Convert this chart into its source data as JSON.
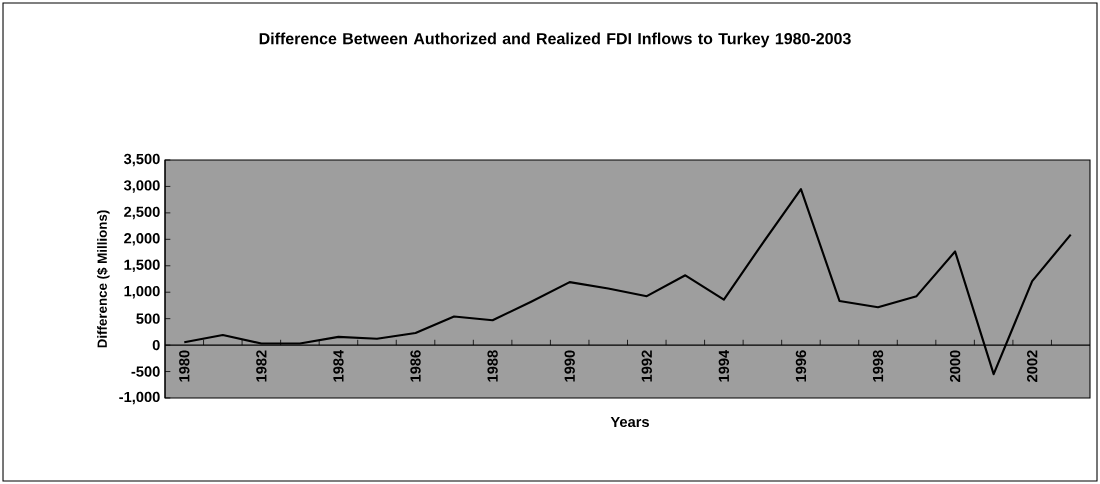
{
  "chart_data": {
    "type": "line",
    "title": "Difference Between Authorized and Realized FDI Inflows to Turkey 1980-2003",
    "xlabel": "Years",
    "ylabel": "Difference ($ Millions)",
    "categories": [
      "1980",
      null,
      "1982",
      null,
      "1984",
      null,
      "1986",
      null,
      "1988",
      null,
      "1990",
      null,
      "1992",
      null,
      "1994",
      null,
      "1996",
      null,
      "1998",
      null,
      "2000",
      null,
      "2002",
      null
    ],
    "series": [
      {
        "color": "#000000",
        "values": [
          55,
          190,
          30,
          30,
          155,
          120,
          230,
          540,
          470,
          820,
          1190,
          1070,
          925,
          1320,
          860,
          1920,
          2950,
          835,
          715,
          925,
          1770,
          -550,
          1210,
          2090
        ]
      }
    ],
    "ylim": [
      -1000,
      3500
    ],
    "yticks": [
      {
        "value": -1000,
        "label": "-1,000"
      },
      {
        "value": -500,
        "label": "-500"
      },
      {
        "value": 0,
        "label": "0"
      },
      {
        "value": 500,
        "label": "500"
      },
      {
        "value": 1000,
        "label": "1,000"
      },
      {
        "value": 1500,
        "label": "1,500"
      },
      {
        "value": 2000,
        "label": "2,000"
      },
      {
        "value": 2500,
        "label": "2,500"
      },
      {
        "value": 3000,
        "label": "3,000"
      },
      {
        "value": 3500,
        "label": "3,500"
      }
    ],
    "grid": false,
    "legend": false,
    "marker": "none",
    "line_style": "solid"
  }
}
